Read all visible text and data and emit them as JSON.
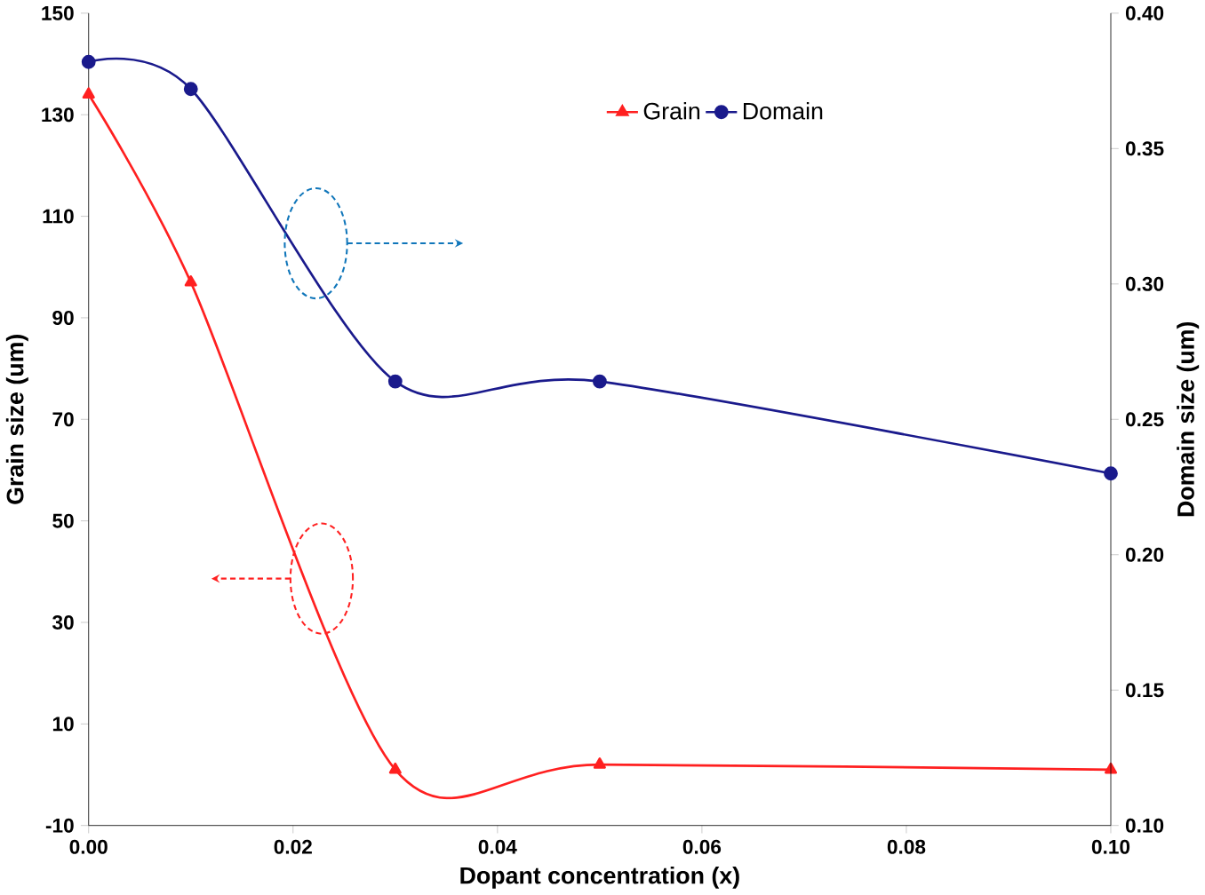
{
  "chart_data": {
    "type": "line",
    "xlabel": "Dopant concentration (x)",
    "ylabel": "Grain size (um)",
    "y2label": "Domain size (um)",
    "x": [
      0,
      0.01,
      0.03,
      0.05,
      0.1
    ],
    "series": [
      {
        "name": "Grain",
        "color": "#ff2020",
        "marker": "triangle",
        "values": [
          134,
          97,
          1,
          2,
          1
        ]
      },
      {
        "name": "Domain",
        "color": "#1a1a8c",
        "marker": "circle",
        "axis": "y2",
        "values": [
          0.382,
          0.372,
          0.264,
          0.264,
          0.23
        ]
      }
    ],
    "xlim": [
      0,
      0.1
    ],
    "xticks": [
      {
        "value": 0,
        "label": "0.00"
      },
      {
        "value": 0.02,
        "label": "0.02"
      },
      {
        "value": 0.04,
        "label": "0.04"
      },
      {
        "value": 0.06,
        "label": "0.06"
      },
      {
        "value": 0.08,
        "label": "0.08"
      },
      {
        "value": 0.1,
        "label": "0.10"
      }
    ],
    "ylim": [
      -10,
      150
    ],
    "yticks": [
      -10,
      10,
      30,
      50,
      70,
      90,
      110,
      130,
      150
    ],
    "y2lim": [
      0.1,
      0.4
    ],
    "y2ticks": [
      {
        "value": 0.1,
        "label": "0.10"
      },
      {
        "value": 0.15,
        "label": "0.15"
      },
      {
        "value": 0.2,
        "label": "0.20"
      },
      {
        "value": 0.25,
        "label": "0.25"
      },
      {
        "value": 0.3,
        "label": "0.30"
      },
      {
        "value": 0.35,
        "label": "0.35"
      },
      {
        "value": 0.4,
        "label": "0.40"
      }
    ],
    "legend": "top",
    "grid": false
  }
}
